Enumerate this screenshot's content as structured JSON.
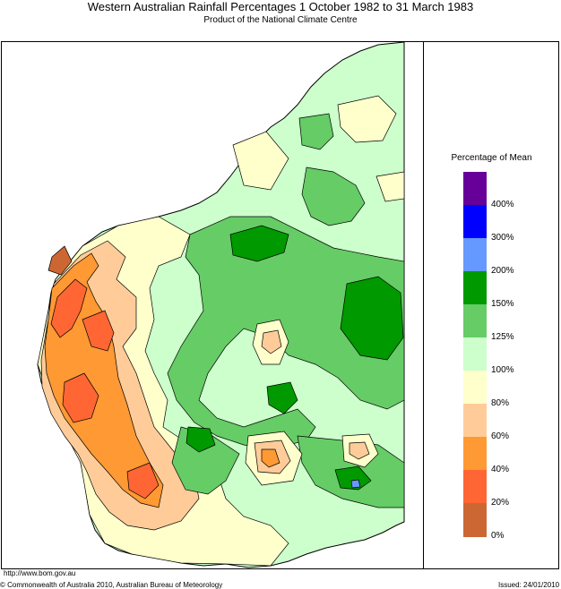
{
  "header": {
    "title": "Western Australian Rainfall Percentages 1 October 1982 to 31 March 1983",
    "subtitle": "Product of the National Climate Centre"
  },
  "legend": {
    "title": "Percentage of Mean",
    "bands": [
      {
        "color": "#660099"
      },
      {
        "color": "#0000ff"
      },
      {
        "color": "#6699ff"
      },
      {
        "color": "#009900"
      },
      {
        "color": "#66cc66"
      },
      {
        "color": "#ccffcc"
      },
      {
        "color": "#ffffcc"
      },
      {
        "color": "#ffcc99"
      },
      {
        "color": "#ff9933"
      },
      {
        "color": "#ff6633"
      },
      {
        "color": "#cc6633"
      }
    ],
    "labels": [
      "400%",
      "300%",
      "200%",
      "150%",
      "125%",
      "100%",
      "80%",
      "60%",
      "40%",
      "20%",
      "0%"
    ]
  },
  "footer": {
    "url": "http://www.bom.gov.au",
    "copyright": "© Commonwealth of Australia 2010, Australian Bureau of Meteorology",
    "issued": "Issued: 24/01/2010"
  }
}
